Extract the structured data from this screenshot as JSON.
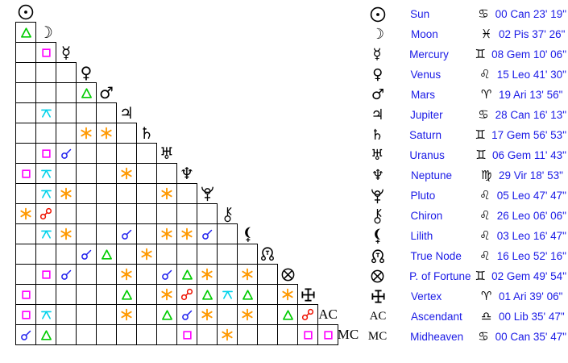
{
  "page": {
    "background": "#ffffff"
  },
  "colors": {
    "grid_border": "#000000",
    "planet_glyph": "#000000",
    "sign_glyph": "#000000",
    "table_text": "#1a1ae6"
  },
  "aspect_types": {
    "conjunction": {
      "name": "conjunction",
      "color": "#2222ee"
    },
    "sextile": {
      "name": "sextile",
      "color": "#ff9900"
    },
    "square": {
      "name": "square",
      "color": "#ff00ff"
    },
    "trine": {
      "name": "trine",
      "color": "#00cc00"
    },
    "opposition": {
      "name": "opposition",
      "color": "#ee1100"
    },
    "quincunx": {
      "name": "quincunx",
      "color": "#00d2ea"
    }
  },
  "planets": [
    {
      "id": "sun",
      "name": "Sun",
      "char": "",
      "icon": "sun-icon",
      "sign": "Cancer",
      "sign_char": "♋",
      "position": "00 Can 23' 19\""
    },
    {
      "id": "moon",
      "name": "Moon",
      "char": "☽",
      "icon": "moon-icon",
      "sign": "Pisces",
      "sign_char": "♓",
      "position": "02 Pis 37' 26\""
    },
    {
      "id": "mercury",
      "name": "Mercury",
      "char": "☿",
      "icon": "mercury-icon",
      "sign": "Gemini",
      "sign_char": "♊",
      "position": "08 Gem 10' 06\""
    },
    {
      "id": "venus",
      "name": "Venus",
      "char": "♀",
      "icon": "venus-icon",
      "sign": "Leo",
      "sign_char": "♌",
      "position": "15 Leo 41' 30\""
    },
    {
      "id": "mars",
      "name": "Mars",
      "char": "♂",
      "icon": "mars-icon",
      "sign": "Aries",
      "sign_char": "♈",
      "position": "19 Ari 13' 56\""
    },
    {
      "id": "jupiter",
      "name": "Jupiter",
      "char": "♃",
      "icon": "jupiter-icon",
      "sign": "Cancer",
      "sign_char": "♋",
      "position": "28 Can 16' 13\""
    },
    {
      "id": "saturn",
      "name": "Saturn",
      "char": "♄",
      "icon": "saturn-icon",
      "sign": "Gemini",
      "sign_char": "♊",
      "position": "17 Gem 56' 53\""
    },
    {
      "id": "uranus",
      "name": "Uranus",
      "char": "♅",
      "icon": "uranus-icon",
      "sign": "Gemini",
      "sign_char": "♊",
      "position": "06 Gem 11' 43\""
    },
    {
      "id": "neptune",
      "name": "Neptune",
      "char": "♆",
      "icon": "neptune-icon",
      "sign": "Virgo",
      "sign_char": "♍",
      "position": "29 Vir 18' 53\""
    },
    {
      "id": "pluto",
      "name": "Pluto",
      "char": "",
      "icon": "pluto-icon",
      "sign": "Leo",
      "sign_char": "♌",
      "position": "05 Leo 47' 47\""
    },
    {
      "id": "chiron",
      "name": "Chiron",
      "char": "",
      "icon": "chiron-icon",
      "sign": "Leo",
      "sign_char": "♌",
      "position": "26 Leo 06' 06\""
    },
    {
      "id": "lilith",
      "name": "Lilith",
      "char": "",
      "icon": "lilith-icon",
      "sign": "Leo",
      "sign_char": "♌",
      "position": "03 Leo 16' 47\""
    },
    {
      "id": "truenode",
      "name": "True Node",
      "char": "",
      "icon": "true-node-icon",
      "sign": "Leo",
      "sign_char": "♌",
      "position": "16 Leo 52' 16\""
    },
    {
      "id": "pof",
      "name": "P. of Fortune",
      "char": "",
      "icon": "part-of-fortune-icon",
      "sign": "Gemini",
      "sign_char": "♊",
      "position": "02 Gem 49' 54\""
    },
    {
      "id": "vertex",
      "name": "Vertex",
      "char": "",
      "icon": "vertex-icon",
      "sign": "Aries",
      "sign_char": "♈",
      "position": "01 Ari 39' 06\""
    },
    {
      "id": "ac",
      "name": "Ascendant",
      "char": "AC",
      "icon": "ascendant-label",
      "sign": "Libra",
      "sign_char": "♎",
      "position": "00 Lib 35' 47\""
    },
    {
      "id": "mc",
      "name": "Midheaven",
      "char": "MC",
      "icon": "midheaven-label",
      "sign": "Cancer",
      "sign_char": "♋",
      "position": "00 Can 35' 47\""
    }
  ],
  "aspects": [
    {
      "between": [
        "moon",
        "sun"
      ],
      "type": "trine"
    },
    {
      "between": [
        "mercury",
        "moon"
      ],
      "type": "square"
    },
    {
      "between": [
        "mars",
        "venus"
      ],
      "type": "trine"
    },
    {
      "between": [
        "jupiter",
        "moon"
      ],
      "type": "quincunx"
    },
    {
      "between": [
        "saturn",
        "venus"
      ],
      "type": "sextile"
    },
    {
      "between": [
        "saturn",
        "mars"
      ],
      "type": "sextile"
    },
    {
      "between": [
        "uranus",
        "moon"
      ],
      "type": "square"
    },
    {
      "between": [
        "uranus",
        "mercury"
      ],
      "type": "conjunction"
    },
    {
      "between": [
        "neptune",
        "sun"
      ],
      "type": "square"
    },
    {
      "between": [
        "neptune",
        "moon"
      ],
      "type": "quincunx"
    },
    {
      "between": [
        "neptune",
        "jupiter"
      ],
      "type": "sextile"
    },
    {
      "between": [
        "pluto",
        "moon"
      ],
      "type": "quincunx"
    },
    {
      "between": [
        "pluto",
        "mercury"
      ],
      "type": "sextile"
    },
    {
      "between": [
        "pluto",
        "uranus"
      ],
      "type": "sextile"
    },
    {
      "between": [
        "chiron",
        "sun"
      ],
      "type": "sextile"
    },
    {
      "between": [
        "chiron",
        "moon"
      ],
      "type": "opposition"
    },
    {
      "between": [
        "lilith",
        "moon"
      ],
      "type": "quincunx"
    },
    {
      "between": [
        "lilith",
        "mercury"
      ],
      "type": "sextile"
    },
    {
      "between": [
        "lilith",
        "jupiter"
      ],
      "type": "conjunction"
    },
    {
      "between": [
        "lilith",
        "uranus"
      ],
      "type": "sextile"
    },
    {
      "between": [
        "lilith",
        "neptune"
      ],
      "type": "sextile"
    },
    {
      "between": [
        "lilith",
        "pluto"
      ],
      "type": "conjunction"
    },
    {
      "between": [
        "truenode",
        "venus"
      ],
      "type": "conjunction"
    },
    {
      "between": [
        "truenode",
        "mars"
      ],
      "type": "trine"
    },
    {
      "between": [
        "truenode",
        "saturn"
      ],
      "type": "sextile"
    },
    {
      "between": [
        "pof",
        "moon"
      ],
      "type": "square"
    },
    {
      "between": [
        "pof",
        "mercury"
      ],
      "type": "conjunction"
    },
    {
      "between": [
        "pof",
        "jupiter"
      ],
      "type": "sextile"
    },
    {
      "between": [
        "pof",
        "uranus"
      ],
      "type": "conjunction"
    },
    {
      "between": [
        "pof",
        "neptune"
      ],
      "type": "trine"
    },
    {
      "between": [
        "pof",
        "pluto"
      ],
      "type": "sextile"
    },
    {
      "between": [
        "pof",
        "lilith"
      ],
      "type": "sextile"
    },
    {
      "between": [
        "vertex",
        "sun"
      ],
      "type": "square"
    },
    {
      "between": [
        "vertex",
        "jupiter"
      ],
      "type": "trine"
    },
    {
      "between": [
        "vertex",
        "uranus"
      ],
      "type": "sextile"
    },
    {
      "between": [
        "vertex",
        "neptune"
      ],
      "type": "opposition"
    },
    {
      "between": [
        "vertex",
        "pluto"
      ],
      "type": "trine"
    },
    {
      "between": [
        "vertex",
        "chiron"
      ],
      "type": "quincunx"
    },
    {
      "between": [
        "vertex",
        "lilith"
      ],
      "type": "trine"
    },
    {
      "between": [
        "vertex",
        "pof"
      ],
      "type": "sextile"
    },
    {
      "between": [
        "ac",
        "sun"
      ],
      "type": "square"
    },
    {
      "between": [
        "ac",
        "moon"
      ],
      "type": "quincunx"
    },
    {
      "between": [
        "ac",
        "jupiter"
      ],
      "type": "sextile"
    },
    {
      "between": [
        "ac",
        "uranus"
      ],
      "type": "trine"
    },
    {
      "between": [
        "ac",
        "neptune"
      ],
      "type": "conjunction"
    },
    {
      "between": [
        "ac",
        "pluto"
      ],
      "type": "sextile"
    },
    {
      "between": [
        "ac",
        "lilith"
      ],
      "type": "sextile"
    },
    {
      "between": [
        "ac",
        "pof"
      ],
      "type": "trine"
    },
    {
      "between": [
        "ac",
        "vertex"
      ],
      "type": "opposition"
    },
    {
      "between": [
        "mc",
        "sun"
      ],
      "type": "conjunction"
    },
    {
      "between": [
        "mc",
        "moon"
      ],
      "type": "trine"
    },
    {
      "between": [
        "mc",
        "neptune"
      ],
      "type": "square"
    },
    {
      "between": [
        "mc",
        "chiron"
      ],
      "type": "sextile"
    },
    {
      "between": [
        "mc",
        "vertex"
      ],
      "type": "square"
    },
    {
      "between": [
        "mc",
        "ac"
      ],
      "type": "square"
    }
  ]
}
